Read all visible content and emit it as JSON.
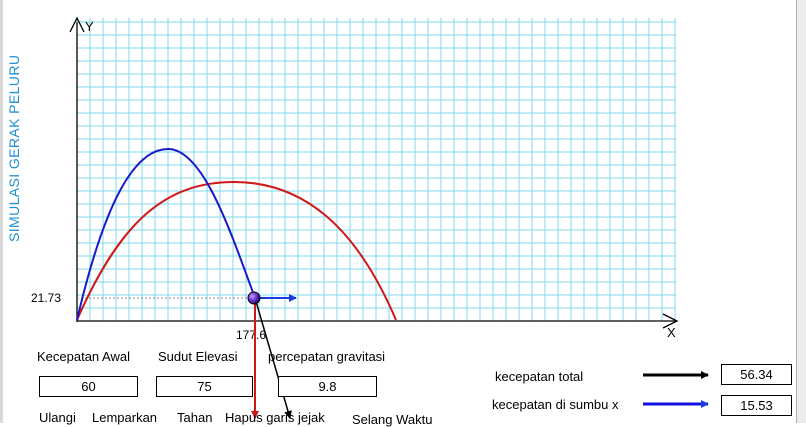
{
  "app": {
    "side_title": "SIMULASI GERAK PELURU"
  },
  "plot": {
    "axis_x_label": "X",
    "axis_y_label": "Y",
    "height_readout": "21.73",
    "distance_readout": "177.6",
    "colors": {
      "grid": "#7fd8ec",
      "trajectory_1": "#1a1ac8",
      "trajectory_2": "#d01818",
      "velocity_vector": "#1a3cdc",
      "acceleration_vector": "#d01818"
    }
  },
  "inputs": {
    "initial_velocity": {
      "label": "Kecepatan Awal",
      "value": "60"
    },
    "elevation_angle": {
      "label": "Sudut Elevasi",
      "value": "75"
    },
    "gravity": {
      "label": "percepatan gravitasi",
      "value": "9.8"
    }
  },
  "readouts": {
    "total_velocity": {
      "label": "kecepatan total",
      "value": "56.34",
      "arrow_color": "#000000"
    },
    "velocity_x": {
      "label": "kecepatan di sumbu x",
      "value": "15.53",
      "arrow_color": "#1010e0"
    }
  },
  "buttons": {
    "reset": "Ulangi",
    "launch": "Lemparkan",
    "hold": "Tahan",
    "clear_trace": "Hapus garis jejak",
    "time_interval": "Selang Waktu"
  }
}
